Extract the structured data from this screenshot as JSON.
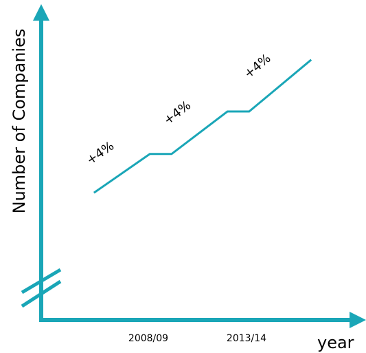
{
  "chart_data": {
    "type": "line",
    "title": "",
    "xlabel": "year",
    "ylabel": "Number of Companies",
    "x_tick_labels": [
      "2008/09",
      "2013/14"
    ],
    "y_axis_break": true,
    "series": [
      {
        "x": [
          2004.4,
          2008.0,
          2009.4,
          2013.0,
          2014.4,
          2018.4
        ],
        "y": [
          100,
          113.4,
          113.4,
          128.1,
          128.1,
          146.0
        ]
      }
    ],
    "annotations": [
      "+4%",
      "+4%",
      "+4%"
    ],
    "xlim": [
      2001,
      2021
    ],
    "ylim": [
      56,
      160
    ],
    "grid": false,
    "legend": false
  },
  "colors": {
    "accent": "#1aa6b7",
    "text": "#000000"
  }
}
